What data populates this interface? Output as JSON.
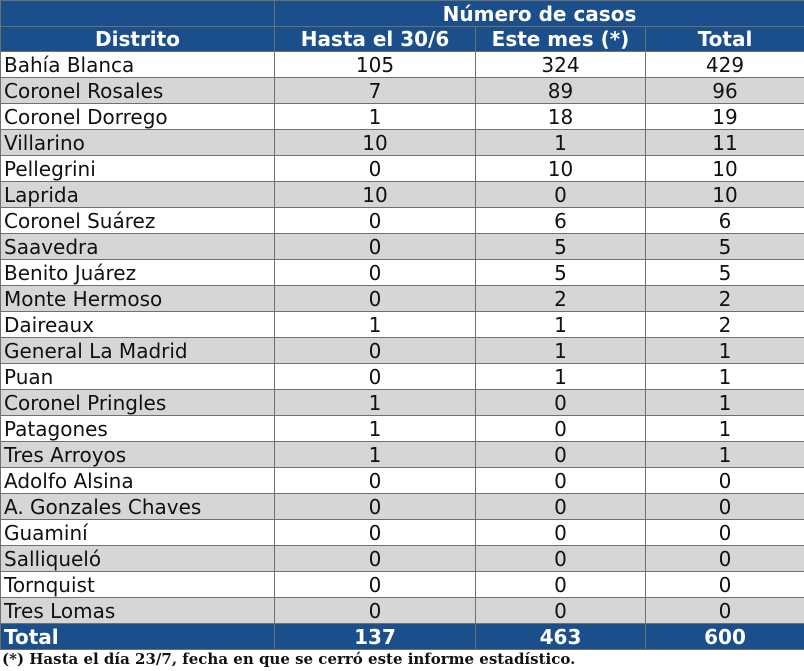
{
  "table": {
    "group_header": "Número de casos",
    "columns": [
      "Distrito",
      "Hasta el 30/6",
      "Este mes (*)",
      "Total"
    ],
    "rows": [
      {
        "distrito": "Bahía Blanca",
        "hasta": "105",
        "mes": "324",
        "total": "429"
      },
      {
        "distrito": "Coronel Rosales",
        "hasta": "7",
        "mes": "89",
        "total": "96"
      },
      {
        "distrito": "Coronel Dorrego",
        "hasta": "1",
        "mes": "18",
        "total": "19"
      },
      {
        "distrito": "Villarino",
        "hasta": "10",
        "mes": "1",
        "total": "11"
      },
      {
        "distrito": "Pellegrini",
        "hasta": "0",
        "mes": "10",
        "total": "10"
      },
      {
        "distrito": "Laprida",
        "hasta": "10",
        "mes": "0",
        "total": "10"
      },
      {
        "distrito": "Coronel Suárez",
        "hasta": "0",
        "mes": "6",
        "total": "6"
      },
      {
        "distrito": "Saavedra",
        "hasta": "0",
        "mes": "5",
        "total": "5"
      },
      {
        "distrito": "Benito Juárez",
        "hasta": "0",
        "mes": "5",
        "total": "5"
      },
      {
        "distrito": "Monte Hermoso",
        "hasta": "0",
        "mes": "2",
        "total": "2"
      },
      {
        "distrito": "Daireaux",
        "hasta": "1",
        "mes": "1",
        "total": "2"
      },
      {
        "distrito": "General La Madrid",
        "hasta": "0",
        "mes": "1",
        "total": "1"
      },
      {
        "distrito": "Puan",
        "hasta": "0",
        "mes": "1",
        "total": "1"
      },
      {
        "distrito": "Coronel Pringles",
        "hasta": "1",
        "mes": "0",
        "total": "1"
      },
      {
        "distrito": "Patagones",
        "hasta": "1",
        "mes": "0",
        "total": "1"
      },
      {
        "distrito": "Tres Arroyos",
        "hasta": "1",
        "mes": "0",
        "total": "1"
      },
      {
        "distrito": "Adolfo Alsina",
        "hasta": "0",
        "mes": "0",
        "total": "0"
      },
      {
        "distrito": "A. Gonzales Chaves",
        "hasta": "0",
        "mes": "0",
        "total": "0"
      },
      {
        "distrito": "Guaminí",
        "hasta": "0",
        "mes": "0",
        "total": "0"
      },
      {
        "distrito": "Salliqueló",
        "hasta": "0",
        "mes": "0",
        "total": "0"
      },
      {
        "distrito": "Tornquist",
        "hasta": "0",
        "mes": "0",
        "total": "0"
      },
      {
        "distrito": "Tres Lomas",
        "hasta": "0",
        "mes": "0",
        "total": "0"
      }
    ],
    "total_row": {
      "label": "Total",
      "hasta": "137",
      "mes": "463",
      "total": "600"
    },
    "footnote": "(*) Hasta el día 23/7, fecha en que se cerró este informe estadístico.",
    "colors": {
      "header_bg": "#1b4f8c",
      "header_text": "#ffffff",
      "row_alt": "#d6d6d6",
      "row_base": "#ffffff"
    }
  }
}
